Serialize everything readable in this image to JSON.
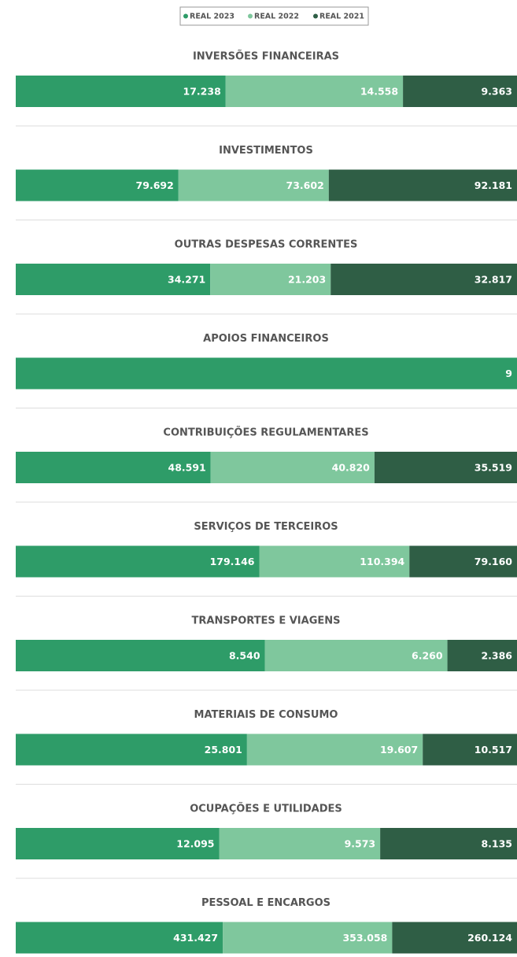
{
  "chart_data": {
    "type": "stacked-bar-100",
    "categories": [
      "INVERSÕES FINANCEIRAS",
      "INVESTIMENTOS",
      "OUTRAS DESPESAS CORRENTES",
      "APOIOS FINANCEIROS",
      "CONTRIBUIÇÕES REGULAMENTARES",
      "SERVIÇOS DE TERCEIROS",
      "TRANSPORTES E VIAGENS",
      "MATERIAIS DE CONSUMO",
      "OCUPAÇÕES E UTILIDADES",
      "PESSOAL E ENCARGOS"
    ],
    "series": [
      {
        "name": "REAL 2023",
        "color": "#2e9c68",
        "values": [
          17238,
          79692,
          34271,
          9,
          48591,
          179146,
          8540,
          25801,
          12095,
          431427
        ],
        "value_labels": [
          "17.238",
          "79.692",
          "34.271",
          "9",
          "48.591",
          "179.146",
          "8.540",
          "25.801",
          "12.095",
          "431.427"
        ]
      },
      {
        "name": "REAL 2022",
        "color": "#7fc79d",
        "values": [
          14558,
          73602,
          21203,
          null,
          40820,
          110394,
          6260,
          19607,
          9573,
          353058
        ],
        "value_labels": [
          "14.558",
          "73.602",
          "21.203",
          null,
          "40.820",
          "110.394",
          "6.260",
          "19.607",
          "9.573",
          "353.058"
        ]
      },
      {
        "name": "REAL 2021",
        "color": "#2f5e45",
        "values": [
          9363,
          92181,
          32817,
          null,
          35519,
          79160,
          2386,
          10517,
          8135,
          260124
        ],
        "value_labels": [
          "9.363",
          "92.181",
          "32.817",
          null,
          "35.519",
          "79.160",
          "2.386",
          "10.517",
          "8.135",
          "260.124"
        ]
      }
    ]
  }
}
